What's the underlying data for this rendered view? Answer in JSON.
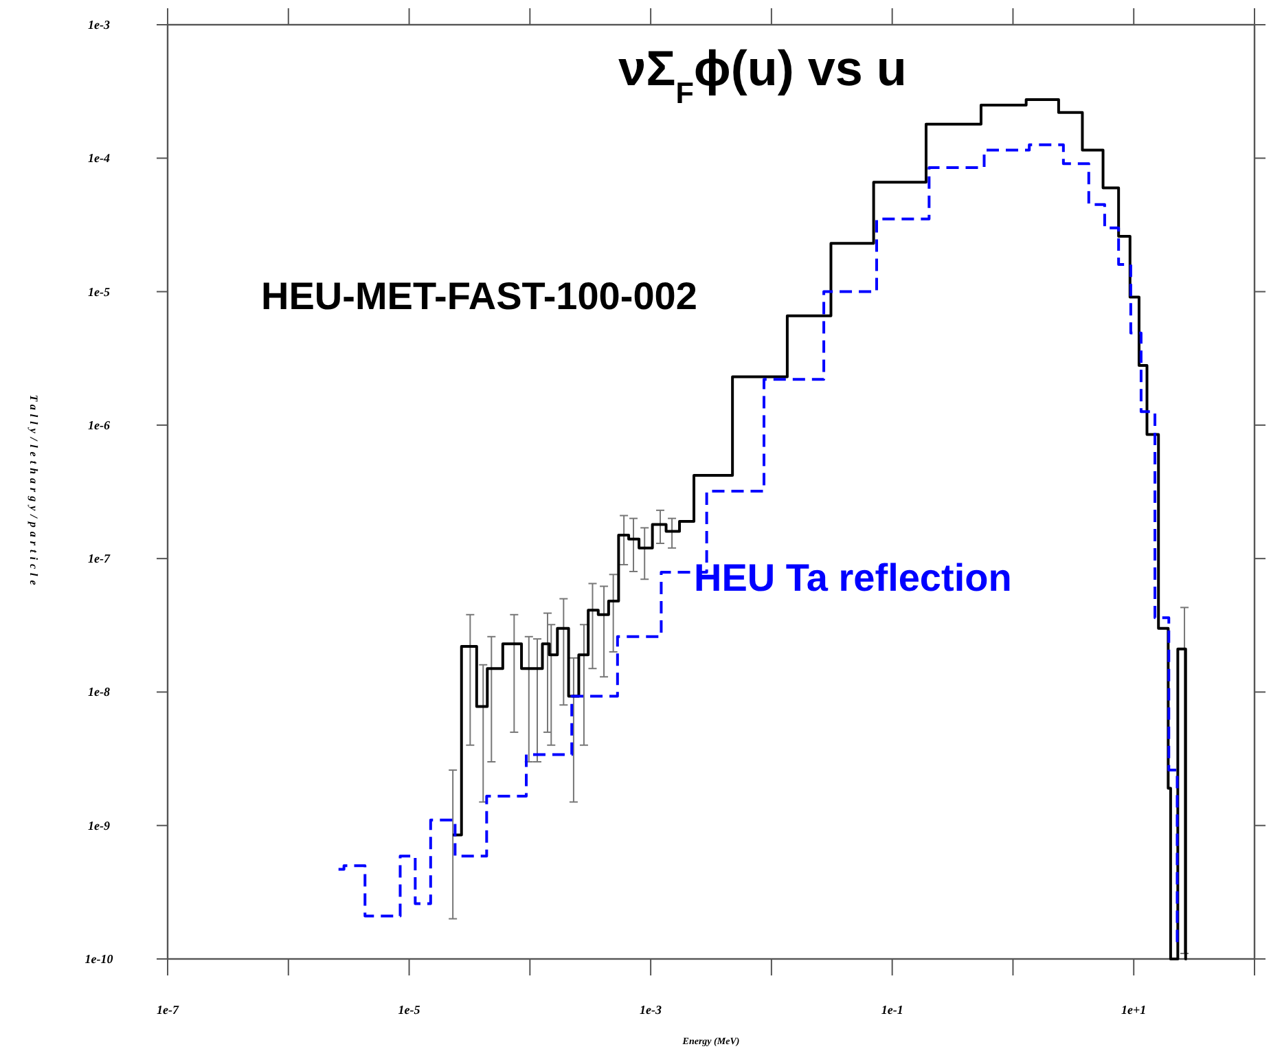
{
  "chart_data": {
    "type": "step",
    "title": "νΣ$_{F}$ϕ(u)  vs  u",
    "xlabel": "Energy (MeV)",
    "ylabel": "Tally/lethargy/particle",
    "log": "xy",
    "grid": false,
    "legend": false,
    "marker": "none",
    "xlim": [
      1e-07,
      100
    ],
    "ylim": [
      1e-10,
      0.001
    ],
    "xticks": [
      {
        "value": 1e-07,
        "label": "1e-7"
      },
      {
        "value": 1e-06,
        "label": null
      },
      {
        "value": 1e-05,
        "label": "1e-5"
      },
      {
        "value": 0.0001,
        "label": null
      },
      {
        "value": 0.001,
        "label": "1e-3"
      },
      {
        "value": 0.01,
        "label": null
      },
      {
        "value": 0.1,
        "label": "1e-1"
      },
      {
        "value": 1,
        "label": null
      },
      {
        "value": 10,
        "label": "1e+1"
      },
      {
        "value": 100,
        "label": null
      }
    ],
    "yticks": [
      {
        "value": 1e-10,
        "label": "1e-10"
      },
      {
        "value": 1e-09,
        "label": "1e-9"
      },
      {
        "value": 1e-08,
        "label": "1e-8"
      },
      {
        "value": 1e-07,
        "label": "1e-7"
      },
      {
        "value": 1e-06,
        "label": "1e-6"
      },
      {
        "value": 1e-05,
        "label": "1e-5"
      },
      {
        "value": 0.0001,
        "label": "1e-4"
      },
      {
        "value": 0.001,
        "label": "1e-3"
      }
    ],
    "series": [
      {
        "name": "HEU-MET-FAST-100-002",
        "color": "#000000",
        "line_style": "solid",
        "x": [
          2.3e-05,
          3.2e-05,
          4.1e-05,
          4.8e-05,
          7.4e-05,
          9.8e-05,
          0.000115,
          0.00014,
          0.00015,
          0.00019,
          0.00023,
          0.00028,
          0.00033,
          0.00041,
          0.00049,
          0.0006,
          0.00072,
          0.00089,
          0.0012,
          0.0015,
          0.002,
          0.0026,
          0.0087,
          0.021,
          0.046,
          0.107,
          0.34,
          0.87,
          1.9,
          3.0,
          4.7,
          6.6,
          8.5,
          10.2,
          12,
          13.8,
          18.6,
          20,
          20.4,
          26.3,
          27.5
        ],
        "values": [
          8.5e-10,
          2.2e-08,
          7.8e-09,
          1.5e-08,
          2.3e-08,
          1.5e-08,
          1.5e-08,
          2.3e-08,
          1.9e-08,
          3e-08,
          9.3e-09,
          1.9e-08,
          4.1e-08,
          3.8e-08,
          4.8e-08,
          1.5e-07,
          1.4e-07,
          1.2e-07,
          1.8e-07,
          1.6e-07,
          1.9e-07,
          4.2e-07,
          2.3e-06,
          6.6e-06,
          2.3e-05,
          6.6e-05,
          0.00018,
          0.00025,
          0.000275,
          0.00022,
          0.000115,
          6e-05,
          2.6e-05,
          9.1e-06,
          2.8e-06,
          8.5e-07,
          3e-08,
          1.9e-09,
          1e-10,
          2.1e-08,
          1e-10
        ],
        "errors": [
          [
            2e-10,
            2.6e-09
          ],
          [
            4e-09,
            3.8e-08
          ],
          [
            1.5e-09,
            1.6e-08
          ],
          [
            3e-09,
            2.6e-08
          ],
          [
            5e-09,
            3.8e-08
          ],
          [
            3e-09,
            2.6e-08
          ],
          [
            3e-09,
            2.5e-08
          ],
          [
            5e-09,
            3.9e-08
          ],
          [
            4e-09,
            3.2e-08
          ],
          [
            8e-09,
            5e-08
          ],
          [
            1.5e-09,
            1.8e-08
          ],
          [
            4e-09,
            3.2e-08
          ],
          [
            1.5e-08,
            6.5e-08
          ],
          [
            1.3e-08,
            6.2e-08
          ],
          [
            2e-08,
            7.6e-08
          ],
          [
            9e-08,
            2.1e-07
          ],
          [
            8e-08,
            2e-07
          ],
          [
            7e-08,
            1.7e-07
          ],
          [
            1.3e-07,
            2.3e-07
          ],
          [
            1.2e-07,
            2e-07
          ],
          null,
          null,
          null,
          null,
          null,
          null,
          null,
          null,
          null,
          null,
          null,
          null,
          null,
          null,
          null,
          null,
          null,
          null,
          null,
          [
            1.1e-10,
            4.3e-08
          ],
          null
        ]
      },
      {
        "name": "HEU Ta reflection",
        "color": "#0000ff",
        "line_style": "dashed",
        "x": [
          2.6e-06,
          3.2e-06,
          5.8e-06,
          7.1e-06,
          1e-05,
          1.26e-05,
          1.8e-05,
          3.2e-05,
          6e-05,
          0.000145,
          0.00034,
          0.00083,
          0.0018,
          0.0047,
          0.016,
          0.046,
          0.12,
          0.34,
          0.98,
          1.9,
          3.6,
          5.0,
          6.6,
          8.5,
          10.5,
          12.6,
          17.8,
          21.4,
          24.5
        ],
        "values": [
          4.7e-10,
          5e-10,
          2.1e-10,
          2.1e-10,
          5.9e-10,
          2.6e-10,
          1.1e-09,
          5.9e-10,
          1.66e-09,
          3.4e-09,
          9.3e-09,
          2.6e-08,
          7.9e-08,
          3.2e-07,
          2.2e-06,
          1e-05,
          3.5e-05,
          8.5e-05,
          0.000115,
          0.000126,
          9.1e-05,
          4.5e-05,
          3e-05,
          1.6e-05,
          4.9e-06,
          1.26e-06,
          3.6e-08,
          2.6e-09,
          1.3e-10
        ]
      }
    ]
  }
}
